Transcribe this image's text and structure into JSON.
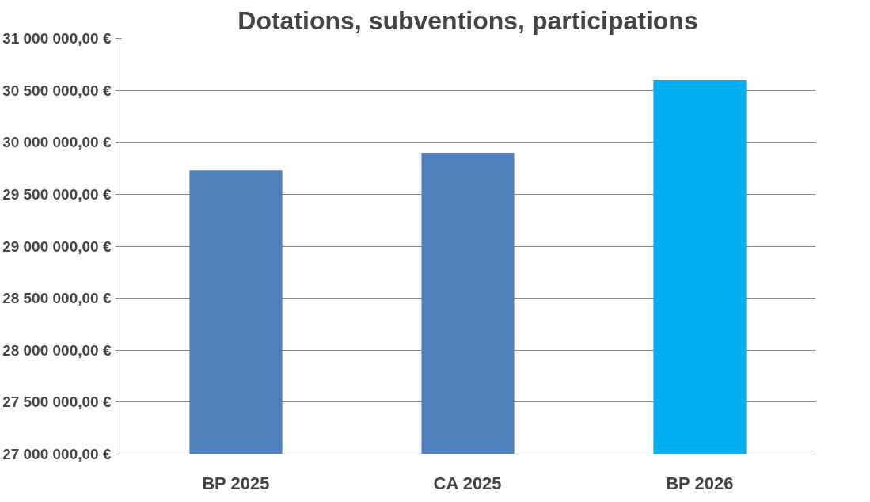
{
  "chart_data": {
    "type": "bar",
    "title": "Dotations, subventions, participations",
    "categories": [
      "BP 2025",
      "CA 2025",
      "BP 2026"
    ],
    "values": [
      29730000,
      29900000,
      30600000
    ],
    "colors": [
      "#4f81bd",
      "#4f81bd",
      "#00b0f0"
    ],
    "ylim": [
      27000000,
      31000000
    ],
    "yticks": [
      {
        "value": 27000000,
        "label": "27 000 000,00 €"
      },
      {
        "value": 27500000,
        "label": "27 500 000,00 €"
      },
      {
        "value": 28000000,
        "label": "28 000 000,00 €"
      },
      {
        "value": 28500000,
        "label": "28 500 000,00 €"
      },
      {
        "value": 29000000,
        "label": "29 000 000,00 €"
      },
      {
        "value": 29500000,
        "label": "29 500 000,00 €"
      },
      {
        "value": 30000000,
        "label": "30 000 000,00 €"
      },
      {
        "value": 30500000,
        "label": "30 500 000,00 €"
      },
      {
        "value": 31000000,
        "label": "31 000 000,00 €"
      }
    ],
    "grid": "y"
  }
}
